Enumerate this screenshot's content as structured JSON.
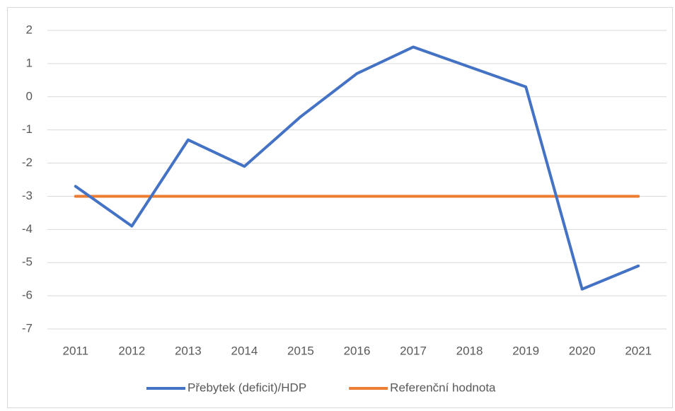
{
  "chart_data": {
    "type": "line",
    "categories": [
      "2011",
      "2012",
      "2013",
      "2014",
      "2015",
      "2016",
      "2017",
      "2018",
      "2019",
      "2020",
      "2021"
    ],
    "series": [
      {
        "name": "Přebytek (deficit)/HDP",
        "color": "#4472c4",
        "values": [
          -2.7,
          -3.9,
          -1.3,
          -2.1,
          -0.6,
          0.7,
          1.5,
          0.9,
          0.3,
          -5.8,
          -5.1
        ]
      },
      {
        "name": "Referenční hodnota",
        "color": "#ed7d31",
        "values": [
          -3,
          -3,
          -3,
          -3,
          -3,
          -3,
          -3,
          -3,
          -3,
          -3,
          -3
        ]
      }
    ],
    "ylim": [
      -7,
      2
    ],
    "yticks": [
      -7,
      -6,
      -5,
      -4,
      -3,
      -2,
      -1,
      0,
      1,
      2
    ],
    "grid": true,
    "legend": "bottom"
  }
}
